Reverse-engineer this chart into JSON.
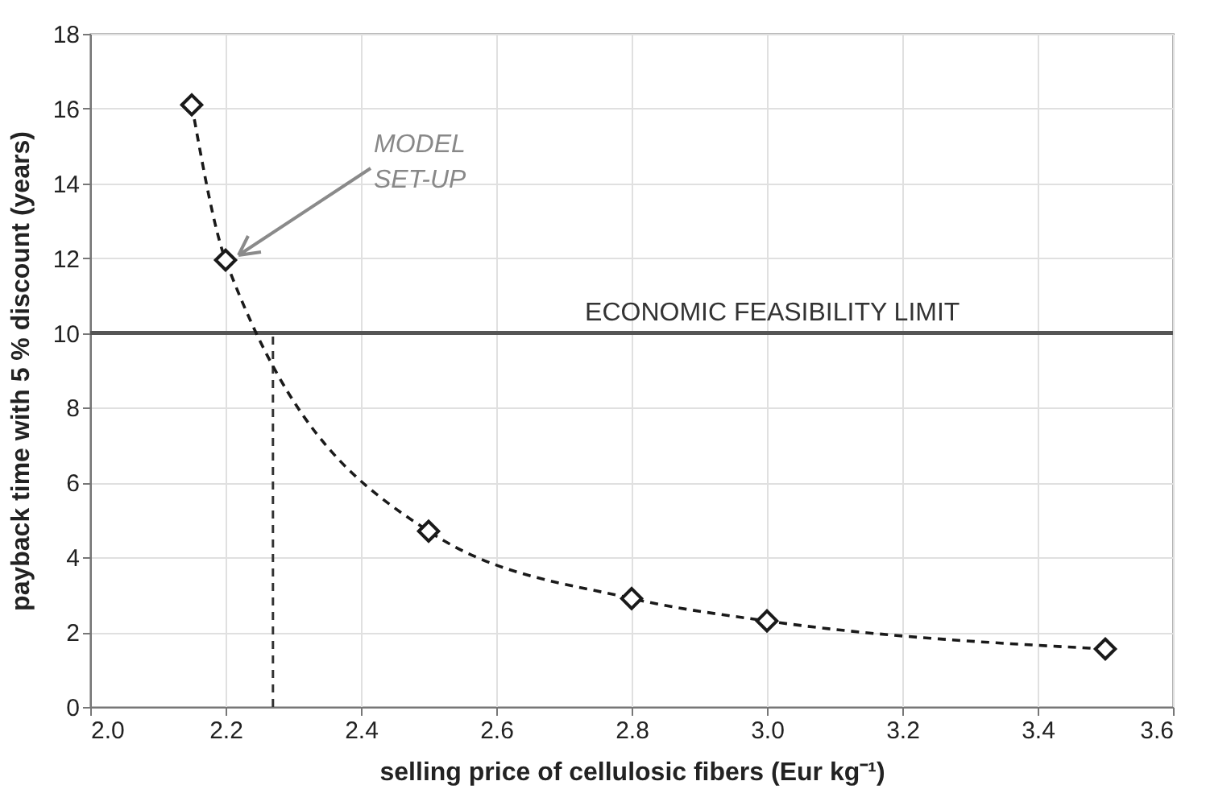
{
  "chart_data": {
    "type": "line",
    "xlabel": "selling price of cellulosic fibers (Eur kg⁻¹)",
    "ylabel": "payback time with 5 % discount (years)",
    "x": [
      2.15,
      2.2,
      2.5,
      2.8,
      3.0,
      3.5
    ],
    "series": [
      {
        "color": "#1a1a1a",
        "values": [
          16.1,
          11.95,
          4.7,
          2.9,
          2.3,
          1.55
        ]
      }
    ],
    "marker": "diamond",
    "line_style": "dashed",
    "grid": true,
    "xlim": [
      2.0,
      3.6
    ],
    "xticks": [
      {
        "value": 2.0,
        "label": "2.0"
      },
      2.2,
      2.4,
      2.6,
      2.8,
      {
        "value": 3.0,
        "label": "3.0"
      },
      3.2,
      3.4,
      3.6
    ],
    "ylim": [
      0,
      18
    ],
    "yticks": [
      0,
      2,
      4,
      6,
      8,
      10,
      12,
      14,
      16,
      18
    ],
    "ref_lines": [
      {
        "axis": "y",
        "value": 10,
        "label": "ECONOMIC FEASIBILITY LIMIT",
        "color": "#555555",
        "line_style": "solid"
      },
      {
        "axis": "x",
        "value": 2.27,
        "color": "#333333",
        "line_style": "dashed"
      }
    ],
    "annotations": [
      {
        "text": "MODEL SET-UP",
        "x": 2.2,
        "y": 11.95
      }
    ]
  }
}
